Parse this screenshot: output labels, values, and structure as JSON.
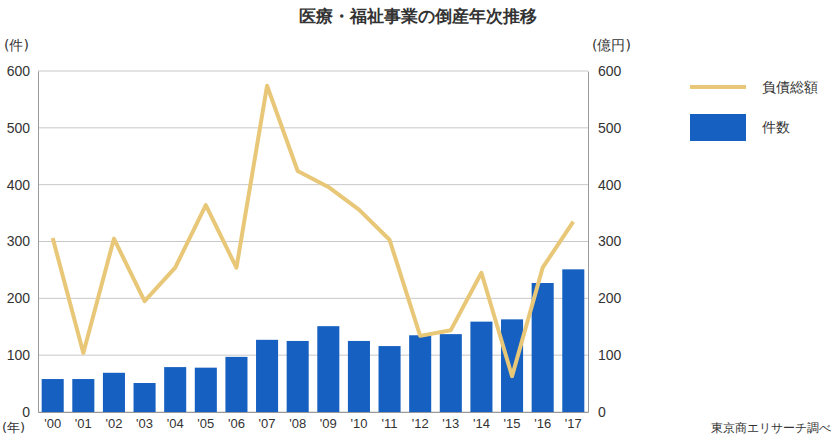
{
  "chart_data": {
    "type": "bar",
    "title": "医療・福祉事業の倒産年次推移",
    "y_label": "(件)",
    "y2_label": "(億円)",
    "x_label": "(年)",
    "source": "東京商エリサーチ調べ",
    "categories": [
      "'00",
      "'01",
      "'02",
      "'03",
      "'04",
      "'05",
      "'06",
      "'07",
      "'08",
      "'09",
      "'10",
      "'11",
      "'12",
      "'13",
      "'14",
      "'15",
      "'16",
      "'17"
    ],
    "series": [
      {
        "name": "負債総額",
        "type": "line",
        "axis": "y2",
        "color": "#e8c878",
        "values": [
          306,
          104,
          305,
          195,
          254,
          364,
          254,
          574,
          424,
          396,
          356,
          303,
          134,
          144,
          245,
          63,
          254,
          335
        ]
      },
      {
        "name": "件数",
        "type": "bar",
        "color": "#1560c0",
        "values": [
          58,
          58,
          69,
          51,
          79,
          78,
          97,
          127,
          125,
          151,
          125,
          116,
          135,
          137,
          159,
          163,
          227,
          251
        ]
      }
    ],
    "ylim": [
      0,
      600
    ],
    "yticks": [
      0,
      100,
      200,
      300,
      400,
      500,
      600
    ],
    "y2lim": [
      0,
      600
    ],
    "y2ticks": [
      0,
      100,
      200,
      300,
      400,
      500,
      600
    ],
    "grid": true,
    "legend": "right"
  }
}
